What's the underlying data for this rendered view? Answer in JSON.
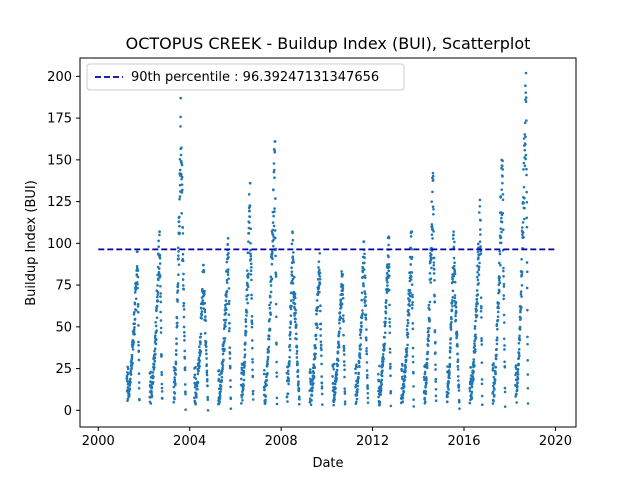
{
  "chart_data": {
    "type": "scatter",
    "title": "OCTOPUS CREEK - Buildup Index (BUI), Scatterplot",
    "xlabel": "Date",
    "ylabel": "Buildup Index (BUI)",
    "xlim": [
      1999.2,
      2020.9
    ],
    "ylim": [
      -10,
      211
    ],
    "x_ticks": [
      2000,
      2004,
      2008,
      2012,
      2016,
      2020
    ],
    "x_tick_labels": [
      "2000",
      "2004",
      "2008",
      "2012",
      "2016",
      "2020"
    ],
    "y_ticks": [
      0,
      25,
      50,
      75,
      100,
      125,
      150,
      175,
      200
    ],
    "y_tick_labels": [
      "0",
      "25",
      "50",
      "75",
      "100",
      "125",
      "150",
      "175",
      "200"
    ],
    "grid": false,
    "legend_position": "top-left",
    "colors": {
      "points": "#1f77b4",
      "reference_line": "#0000aa"
    },
    "reference_line": {
      "label": "90th percentile : 96.39247131347656",
      "value": 96.39247131347656,
      "x_range": [
        2000,
        2020
      ],
      "style": "dashed"
    },
    "series": [
      {
        "seasons": [
          {
            "start": 2001.25,
            "end": 2001.8,
            "peak": 95,
            "peak_frac": 0.85
          },
          {
            "start": 2002.25,
            "end": 2002.8,
            "peak": 107,
            "peak_frac": 0.8
          },
          {
            "start": 2003.3,
            "end": 2003.82,
            "peak": 187,
            "peak_frac": 0.62
          },
          {
            "start": 2004.2,
            "end": 2004.8,
            "peak": 87,
            "peak_frac": 0.7
          },
          {
            "start": 2005.25,
            "end": 2005.8,
            "peak": 103,
            "peak_frac": 0.8
          },
          {
            "start": 2006.25,
            "end": 2006.78,
            "peak": 136,
            "peak_frac": 0.75
          },
          {
            "start": 2007.25,
            "end": 2007.82,
            "peak": 161,
            "peak_frac": 0.85
          },
          {
            "start": 2008.25,
            "end": 2008.8,
            "peak": 107,
            "peak_frac": 0.45
          },
          {
            "start": 2009.25,
            "end": 2009.8,
            "peak": 94,
            "peak_frac": 0.8
          },
          {
            "start": 2010.25,
            "end": 2010.8,
            "peak": 85,
            "peak_frac": 0.8
          },
          {
            "start": 2011.25,
            "end": 2011.8,
            "peak": 101,
            "peak_frac": 0.7
          },
          {
            "start": 2012.25,
            "end": 2012.8,
            "peak": 104,
            "peak_frac": 0.85
          },
          {
            "start": 2013.25,
            "end": 2013.8,
            "peak": 107,
            "peak_frac": 0.85
          },
          {
            "start": 2014.25,
            "end": 2014.78,
            "peak": 144,
            "peak_frac": 0.75
          },
          {
            "start": 2015.25,
            "end": 2015.8,
            "peak": 107,
            "peak_frac": 0.55
          },
          {
            "start": 2016.25,
            "end": 2016.8,
            "peak": 126,
            "peak_frac": 0.85
          },
          {
            "start": 2017.25,
            "end": 2017.8,
            "peak": 161,
            "peak_frac": 0.8
          },
          {
            "start": 2018.25,
            "end": 2018.8,
            "peak": 202,
            "peak_frac": 0.85
          }
        ]
      }
    ]
  }
}
